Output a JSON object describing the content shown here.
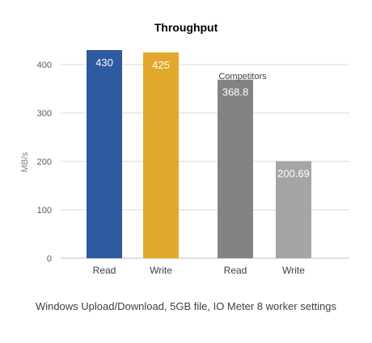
{
  "chart_data": {
    "type": "bar",
    "title": "Throughput",
    "ylabel": "MB/s",
    "xlabel": "",
    "ylim": [
      0,
      450
    ],
    "yticks": [
      "0",
      "100",
      "200",
      "300",
      "400"
    ],
    "ytick_values": [
      0,
      100,
      200,
      300,
      400
    ],
    "grid": true,
    "categories": [
      "Read",
      "Write",
      "Read",
      "Write"
    ],
    "values": [
      430,
      425,
      368.8,
      200.69
    ],
    "data_labels": [
      "430",
      "425",
      "368.8",
      "200.69"
    ],
    "group_label": "Competitors",
    "colors": [
      "#2e5aa1",
      "#e2a82b",
      "#838383",
      "#a4a5a4"
    ]
  },
  "caption": "Windows Upload/Download, 5GB file, IO Meter 8 worker settings"
}
